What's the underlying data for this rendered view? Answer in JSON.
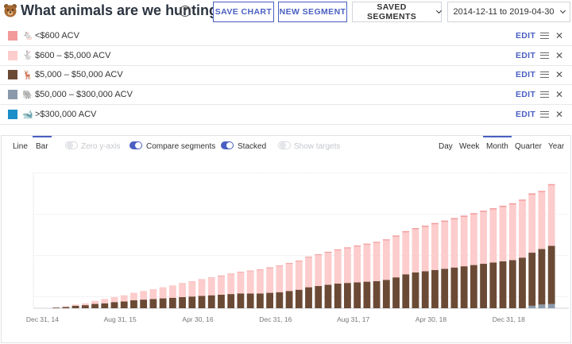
{
  "header": {
    "title": "What animals are we hunting?",
    "help_glyph": "?",
    "save_chart": "SAVE CHART",
    "new_segment": "NEW SEGMENT",
    "saved_segments": "SAVED SEGMENTS",
    "date_range": "2014-12-11 to 2019-04-30"
  },
  "segments": [
    {
      "label": "<$600 ACV",
      "color": "#f29b9b",
      "icon": "mouse-icon",
      "glyph": "🐁",
      "edit": "EDIT"
    },
    {
      "label": "$600 – $5,000 ACV",
      "color": "#fdcccc",
      "icon": "rabbit-icon",
      "glyph": "🐇",
      "edit": "EDIT"
    },
    {
      "label": "$5,000 – $50,000 ACV",
      "color": "#6b4a35",
      "icon": "deer-icon",
      "glyph": "🦌",
      "edit": "EDIT"
    },
    {
      "label": "$50,000 – $300,000 ACV",
      "color": "#8a9aab",
      "icon": "elephant-icon",
      "glyph": "🐘",
      "edit": "EDIT"
    },
    {
      "label": ">$300,000 ACV",
      "color": "#1b8ec9",
      "icon": "whale-icon",
      "glyph": "🐋",
      "edit": "EDIT"
    }
  ],
  "controls": {
    "line": "Line",
    "bar": "Bar",
    "zero_y_axis": "Zero y-axis",
    "compare_segments": "Compare segments",
    "stacked": "Stacked",
    "show_targets": "Show targets",
    "day": "Day",
    "week": "Week",
    "month": "Month",
    "quarter": "Quarter",
    "year": "Year"
  },
  "chart_data": {
    "type": "bar",
    "stacked": true,
    "grid": true,
    "x_tick_labels": [
      "Dec 31, 14",
      "Aug 31, 15",
      "Apr 30, 16",
      "Dec 31, 16",
      "Aug 31, 17",
      "Apr 30, 18",
      "Dec 31, 18"
    ],
    "x_tick_indices": [
      0,
      8,
      16,
      24,
      32,
      40,
      48
    ],
    "ylim": [
      0,
      110
    ],
    "series": [
      {
        "name": "$50,000 – $300,000 ACV",
        "color": "#8a9aab",
        "values": [
          0,
          0,
          0,
          0,
          0,
          0,
          0,
          0,
          0,
          0,
          0,
          0,
          0,
          0,
          0,
          0,
          0,
          0,
          0,
          0,
          0,
          0,
          0,
          0,
          0,
          0,
          0,
          0,
          0,
          0,
          0,
          0,
          0,
          0,
          0,
          0,
          0,
          0,
          0,
          0,
          0,
          0,
          0,
          0,
          0,
          0,
          0,
          0,
          0,
          0,
          2,
          3,
          3.5
        ]
      },
      {
        "name": "$5,000 – $50,000 ACV",
        "color": "#6b4a35",
        "values": [
          0,
          0.5,
          1,
          2,
          2.5,
          3.5,
          4,
          5,
          5.5,
          6.5,
          7,
          7.5,
          8,
          8.5,
          9,
          9.5,
          10,
          10.5,
          11,
          11.5,
          12,
          12,
          12,
          12.5,
          13,
          14,
          15,
          17,
          18,
          19,
          20,
          20.5,
          21,
          21.5,
          22,
          23,
          25,
          27.5,
          29,
          30,
          31,
          32,
          33,
          34,
          35,
          36,
          37,
          38,
          39,
          41,
          43,
          45,
          47
        ]
      },
      {
        "name": "$600 – $5,000 ACV",
        "color": "#fdcccc",
        "values": [
          0,
          0,
          0.5,
          1,
          1.5,
          2.5,
          3.5,
          4,
          5,
          6,
          7,
          8,
          9,
          10,
          11,
          12,
          13,
          14,
          15,
          16,
          17,
          18,
          19,
          20,
          21,
          22,
          23,
          24,
          25,
          26,
          27,
          28,
          29,
          30,
          31,
          32,
          33,
          34,
          35,
          36,
          37,
          38,
          39,
          40,
          41,
          42,
          43,
          44,
          45,
          46,
          47,
          46,
          49
        ]
      },
      {
        "name": "<$600 ACV",
        "color": "#f29b9b",
        "values": [
          0,
          0,
          0,
          0,
          0,
          0,
          0,
          0,
          0,
          0,
          0,
          0,
          0,
          0,
          0.3,
          0.3,
          0.4,
          0.4,
          0.5,
          0.5,
          0.5,
          0.5,
          0.5,
          0.6,
          0.6,
          0.6,
          0.6,
          0.7,
          0.7,
          0.7,
          0.7,
          0.8,
          0.8,
          0.8,
          0.8,
          0.8,
          0.9,
          0.9,
          0.9,
          0.9,
          1,
          1,
          1,
          1,
          1,
          1,
          1,
          1,
          1,
          1,
          1,
          1,
          1
        ]
      }
    ]
  }
}
